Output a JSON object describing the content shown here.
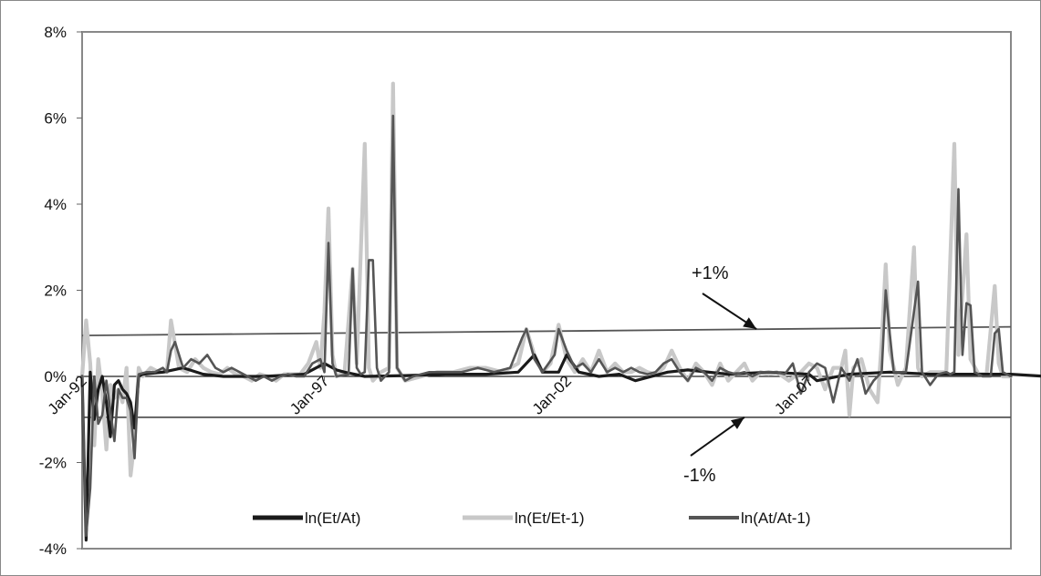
{
  "chart_data": {
    "type": "line",
    "title": "",
    "xlabel": "",
    "ylabel": "",
    "ylim": [
      -4,
      8
    ],
    "y_unit": "%",
    "y_ticks": [
      "8%",
      "6%",
      "4%",
      "2%",
      "0%",
      "-2%",
      "-4%"
    ],
    "y_tick_values": [
      8,
      6,
      4,
      2,
      0,
      -2,
      -4
    ],
    "x_start": "Jan-92",
    "x_end": "Dec-12",
    "x_tick_labels": [
      "Jan-92",
      "Jan-97",
      "Jan-02",
      "Jan-07"
    ],
    "x_tick_values": [
      0,
      60,
      120,
      180
    ],
    "grid": false,
    "legend_position": "bottom-inside",
    "series": [
      {
        "name": "ln(Et/At)",
        "color": "#1a1a1a",
        "points": [
          [
            0,
            0
          ],
          [
            1,
            -3.8
          ],
          [
            2,
            0.1
          ],
          [
            3,
            -1
          ],
          [
            4,
            -0.3
          ],
          [
            5,
            0
          ],
          [
            6,
            -0.6
          ],
          [
            7,
            -1.4
          ],
          [
            8,
            -0.2
          ],
          [
            9,
            -0.1
          ],
          [
            10,
            -0.3
          ],
          [
            11,
            -0.4
          ],
          [
            12,
            -0.6
          ],
          [
            13,
            -1.2
          ],
          [
            14,
            0
          ],
          [
            15,
            0.05
          ],
          [
            20,
            0.1
          ],
          [
            25,
            0.2
          ],
          [
            30,
            0.05
          ],
          [
            35,
            0
          ],
          [
            45,
            0
          ],
          [
            55,
            0.05
          ],
          [
            60,
            0.3
          ],
          [
            63,
            0.15
          ],
          [
            65,
            0.1
          ],
          [
            70,
            0
          ],
          [
            80,
            0.02
          ],
          [
            90,
            0.05
          ],
          [
            100,
            0.05
          ],
          [
            108,
            0.1
          ],
          [
            112,
            0.5
          ],
          [
            114,
            0.1
          ],
          [
            118,
            0.1
          ],
          [
            120,
            0.5
          ],
          [
            123,
            0.1
          ],
          [
            128,
            0
          ],
          [
            133,
            0.05
          ],
          [
            137,
            -0.1
          ],
          [
            145,
            0.1
          ],
          [
            150,
            0.15
          ],
          [
            160,
            0.05
          ],
          [
            170,
            0.1
          ],
          [
            180,
            0.05
          ],
          [
            182,
            -0.1
          ],
          [
            190,
            0.05
          ],
          [
            200,
            0.1
          ],
          [
            210,
            0.05
          ],
          [
            230,
            0.05
          ],
          [
            239,
            0
          ]
        ]
      },
      {
        "name": "ln(Et/Et-1)",
        "color": "#c8c8c8",
        "points": [
          [
            0,
            0
          ],
          [
            1,
            1.3
          ],
          [
            2,
            0.3
          ],
          [
            3,
            -1.6
          ],
          [
            4,
            0.4
          ],
          [
            5,
            -0.4
          ],
          [
            6,
            -1.7
          ],
          [
            7,
            -0.2
          ],
          [
            8,
            -0.5
          ],
          [
            9,
            -0.3
          ],
          [
            10,
            -0.6
          ],
          [
            11,
            0.2
          ],
          [
            12,
            -2.3
          ],
          [
            13,
            -1.5
          ],
          [
            14,
            0.2
          ],
          [
            15,
            0
          ],
          [
            17,
            0.2
          ],
          [
            19,
            0.1
          ],
          [
            21,
            0.1
          ],
          [
            22,
            1.3
          ],
          [
            24,
            0.2
          ],
          [
            26,
            0.1
          ],
          [
            28,
            0.4
          ],
          [
            30,
            0.2
          ],
          [
            32,
            0.1
          ],
          [
            34,
            0.05
          ],
          [
            36,
            0.2
          ],
          [
            38,
            0.05
          ],
          [
            40,
            0
          ],
          [
            42,
            -0.1
          ],
          [
            44,
            0.05
          ],
          [
            46,
            0
          ],
          [
            48,
            -0.1
          ],
          [
            50,
            0.05
          ],
          [
            54,
            0.05
          ],
          [
            56,
            0.3
          ],
          [
            58,
            0.8
          ],
          [
            59,
            0.2
          ],
          [
            60,
            1.5
          ],
          [
            61,
            3.9
          ],
          [
            62,
            0.5
          ],
          [
            63,
            0
          ],
          [
            65,
            0.1
          ],
          [
            67,
            2.5
          ],
          [
            68,
            0.3
          ],
          [
            70,
            5.4
          ],
          [
            71,
            0.2
          ],
          [
            72,
            -0.1
          ],
          [
            74,
            0.1
          ],
          [
            76,
            0.2
          ],
          [
            77,
            6.8
          ],
          [
            78,
            0.2
          ],
          [
            80,
            -0.1
          ],
          [
            84,
            0
          ],
          [
            88,
            0.1
          ],
          [
            92,
            0.1
          ],
          [
            96,
            0.2
          ],
          [
            100,
            0.2
          ],
          [
            104,
            0.1
          ],
          [
            108,
            0.3
          ],
          [
            110,
            1.1
          ],
          [
            112,
            0.5
          ],
          [
            114,
            0.1
          ],
          [
            116,
            0.3
          ],
          [
            118,
            1.2
          ],
          [
            120,
            0.4
          ],
          [
            122,
            0.1
          ],
          [
            124,
            0.4
          ],
          [
            126,
            0.1
          ],
          [
            128,
            0.6
          ],
          [
            130,
            0.1
          ],
          [
            132,
            0.3
          ],
          [
            134,
            0.1
          ],
          [
            136,
            0.1
          ],
          [
            138,
            0.2
          ],
          [
            140,
            0.1
          ],
          [
            142,
            0.05
          ],
          [
            144,
            0.2
          ],
          [
            146,
            0.6
          ],
          [
            148,
            0.2
          ],
          [
            150,
            -0.1
          ],
          [
            152,
            0.3
          ],
          [
            154,
            0.1
          ],
          [
            156,
            -0.2
          ],
          [
            158,
            0.3
          ],
          [
            160,
            -0.1
          ],
          [
            162,
            0.1
          ],
          [
            164,
            0.3
          ],
          [
            166,
            -0.1
          ],
          [
            168,
            0.1
          ],
          [
            170,
            0.05
          ],
          [
            172,
            0.1
          ],
          [
            175,
            -0.1
          ],
          [
            178,
            0.1
          ],
          [
            180,
            0.3
          ],
          [
            182,
            0.2
          ],
          [
            184,
            -0.3
          ],
          [
            186,
            0.2
          ],
          [
            188,
            0.2
          ],
          [
            189,
            0.6
          ],
          [
            190,
            -0.9
          ],
          [
            191,
            0.2
          ],
          [
            193,
            0.4
          ],
          [
            195,
            -0.3
          ],
          [
            197,
            -0.6
          ],
          [
            198,
            0.8
          ],
          [
            199,
            2.6
          ],
          [
            200,
            0.6
          ],
          [
            202,
            -0.2
          ],
          [
            204,
            0.2
          ],
          [
            206,
            3
          ],
          [
            207,
            0.2
          ],
          [
            208,
            0
          ],
          [
            210,
            0.1
          ],
          [
            214,
            0.1
          ],
          [
            216,
            5.4
          ],
          [
            217,
            0.5
          ],
          [
            219,
            3.3
          ],
          [
            220,
            0.4
          ],
          [
            222,
            0.05
          ],
          [
            224,
            0.05
          ],
          [
            226,
            2.1
          ],
          [
            227,
            0.3
          ],
          [
            228,
            0
          ],
          [
            230,
            0
          ]
        ]
      },
      {
        "name": "ln(At/At-1)",
        "color": "#555555",
        "points": [
          [
            0,
            0
          ],
          [
            1,
            -3.7
          ],
          [
            2,
            -2.6
          ],
          [
            3,
            0
          ],
          [
            4,
            -1.1
          ],
          [
            5,
            -0.9
          ],
          [
            6,
            -0.1
          ],
          [
            7,
            -0.8
          ],
          [
            8,
            -1.5
          ],
          [
            9,
            -0.3
          ],
          [
            10,
            -0.5
          ],
          [
            11,
            -0.5
          ],
          [
            12,
            -0.8
          ],
          [
            13,
            -1.9
          ],
          [
            14,
            0.05
          ],
          [
            16,
            0.1
          ],
          [
            18,
            0.1
          ],
          [
            20,
            0.2
          ],
          [
            21,
            0.1
          ],
          [
            22,
            0.6
          ],
          [
            23,
            0.8
          ],
          [
            25,
            0.2
          ],
          [
            27,
            0.4
          ],
          [
            29,
            0.3
          ],
          [
            31,
            0.5
          ],
          [
            33,
            0.2
          ],
          [
            35,
            0.1
          ],
          [
            37,
            0.2
          ],
          [
            39,
            0.1
          ],
          [
            41,
            0
          ],
          [
            43,
            -0.1
          ],
          [
            45,
            0
          ],
          [
            47,
            -0.1
          ],
          [
            49,
            0
          ],
          [
            51,
            0.05
          ],
          [
            53,
            0
          ],
          [
            55,
            0
          ],
          [
            57,
            0.3
          ],
          [
            59,
            0.4
          ],
          [
            60,
            0.1
          ],
          [
            61,
            3.1
          ],
          [
            62,
            0.3
          ],
          [
            63,
            0
          ],
          [
            66,
            0.05
          ],
          [
            67,
            2.5
          ],
          [
            68,
            0.2
          ],
          [
            69,
            0.05
          ],
          [
            70,
            0.1
          ],
          [
            71,
            2.7
          ],
          [
            72,
            2.7
          ],
          [
            73,
            0.2
          ],
          [
            74,
            -0.1
          ],
          [
            76,
            0.1
          ],
          [
            77,
            6.05
          ],
          [
            78,
            0.2
          ],
          [
            80,
            -0.1
          ],
          [
            82,
            0
          ],
          [
            86,
            0.1
          ],
          [
            90,
            0.1
          ],
          [
            94,
            0.1
          ],
          [
            98,
            0.2
          ],
          [
            102,
            0.1
          ],
          [
            106,
            0.2
          ],
          [
            109,
            0.9
          ],
          [
            110,
            1.1
          ],
          [
            112,
            0.4
          ],
          [
            114,
            0.1
          ],
          [
            117,
            0.5
          ],
          [
            118,
            1.1
          ],
          [
            120,
            0.6
          ],
          [
            122,
            0.2
          ],
          [
            124,
            0.3
          ],
          [
            126,
            0.1
          ],
          [
            128,
            0.4
          ],
          [
            130,
            0.1
          ],
          [
            132,
            0.2
          ],
          [
            134,
            0.1
          ],
          [
            136,
            0.2
          ],
          [
            138,
            0.1
          ],
          [
            140,
            0.05
          ],
          [
            142,
            0.1
          ],
          [
            144,
            0.3
          ],
          [
            146,
            0.4
          ],
          [
            148,
            0.1
          ],
          [
            150,
            -0.1
          ],
          [
            152,
            0.2
          ],
          [
            154,
            0.1
          ],
          [
            156,
            -0.1
          ],
          [
            158,
            0.2
          ],
          [
            160,
            0.1
          ],
          [
            162,
            0.05
          ],
          [
            164,
            0.1
          ],
          [
            166,
            0
          ],
          [
            168,
            0.1
          ],
          [
            170,
            0.1
          ],
          [
            172,
            0.1
          ],
          [
            174,
            0.05
          ],
          [
            176,
            0.3
          ],
          [
            178,
            -0.4
          ],
          [
            180,
            0.1
          ],
          [
            182,
            0.3
          ],
          [
            184,
            0.2
          ],
          [
            186,
            -0.6
          ],
          [
            188,
            0.2
          ],
          [
            190,
            -0.1
          ],
          [
            192,
            0.4
          ],
          [
            194,
            -0.4
          ],
          [
            196,
            -0.1
          ],
          [
            198,
            0.1
          ],
          [
            199,
            2
          ],
          [
            200,
            1
          ],
          [
            201,
            0.1
          ],
          [
            204,
            0.1
          ],
          [
            207,
            2.2
          ],
          [
            208,
            0.1
          ],
          [
            210,
            -0.2
          ],
          [
            212,
            0.05
          ],
          [
            214,
            0.1
          ],
          [
            215,
            0.05
          ],
          [
            216,
            0.1
          ],
          [
            217,
            4.35
          ],
          [
            218,
            0.5
          ],
          [
            219,
            1.7
          ],
          [
            220,
            1.65
          ],
          [
            221,
            0.1
          ],
          [
            223,
            0
          ],
          [
            225,
            0
          ],
          [
            226,
            1
          ],
          [
            227,
            1.1
          ],
          [
            228,
            0.1
          ],
          [
            230,
            0
          ]
        ]
      }
    ],
    "annotations": [
      {
        "label": "+1%",
        "arrow_to_value": 1.1,
        "arrow_to_x": 167
      },
      {
        "label": "-1%",
        "arrow_to_value": -0.95,
        "arrow_to_x": 164
      }
    ],
    "reference_lines": [
      {
        "from": [
          0,
          0.95
        ],
        "to": [
          230,
          1.15
        ],
        "color": "#555555"
      },
      {
        "from": [
          0,
          -0.95
        ],
        "to": [
          230,
          -0.95
        ],
        "color": "#555555"
      },
      {
        "from": [
          0,
          0
        ],
        "to": [
          230,
          0
        ],
        "color": "#222222"
      }
    ]
  }
}
